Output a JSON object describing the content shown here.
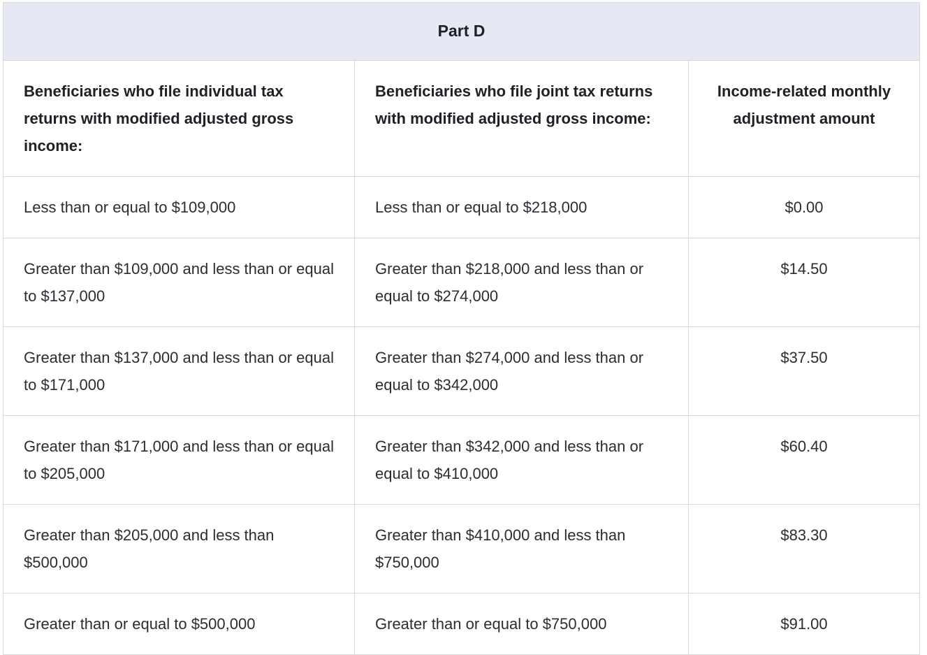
{
  "table": {
    "title": "Part D",
    "colors": {
      "title_background": "#e6e8f4",
      "border": "#d9d9d9",
      "heading_text": "#202027",
      "body_text": "#2c2c33",
      "page_background": "#ffffff"
    },
    "columns": [
      {
        "label": "Beneficiaries who file individual tax returns with modified adjusted gross income:",
        "align": "left"
      },
      {
        "label": "Beneficiaries who file joint tax returns with modified adjusted gross income:",
        "align": "left"
      },
      {
        "label": "Income-related monthly adjustment amount",
        "align": "center"
      }
    ],
    "rows": [
      [
        "Less than or equal to $109,000",
        "Less than or equal to $218,000",
        "$0.00"
      ],
      [
        "Greater than $109,000 and less than or equal to $137,000",
        "Greater than $218,000 and less than or equal to $274,000",
        "$14.50"
      ],
      [
        "Greater than $137,000 and less than or equal to $171,000",
        "Greater than $274,000 and less than or equal to $342,000",
        "$37.50"
      ],
      [
        "Greater than $171,000 and less than or equal to $205,000",
        "Greater than $342,000 and less than or equal to $410,000",
        "$60.40"
      ],
      [
        "Greater than $205,000 and less than $500,000",
        "Greater than $410,000 and less than $750,000",
        "$83.30"
      ],
      [
        "Greater than or equal to $500,000",
        "Greater than or equal to $750,000",
        "$91.00"
      ]
    ]
  }
}
